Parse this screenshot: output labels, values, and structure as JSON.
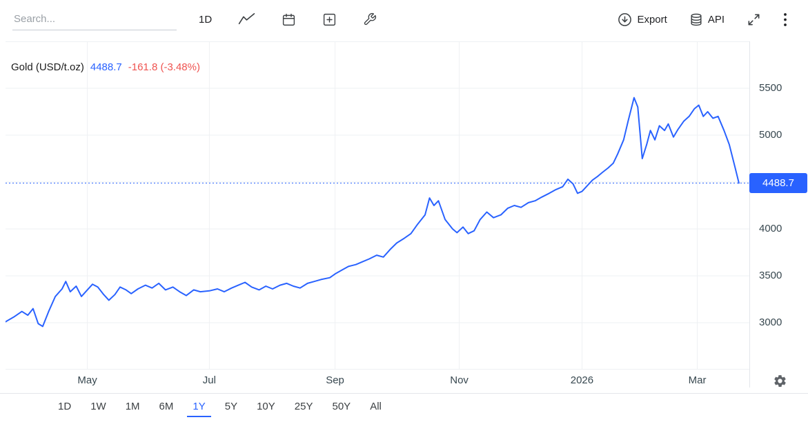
{
  "colors": {
    "accent": "#2962ff",
    "negative": "#ef5350",
    "grid": "#eef0f3",
    "axis_text": "#37474f"
  },
  "toolbar": {
    "search": {
      "placeholder": "Search...",
      "value": ""
    },
    "interval_label": "1D",
    "export_label": "Export",
    "api_label": "API",
    "icons": {
      "left": [
        "line-chart-icon",
        "calendar-icon",
        "add-icon",
        "wrench-icon"
      ],
      "right": [
        "export-cloud-icon",
        "api-database-icon",
        "fullscreen-icon",
        "kebab-menu-icon"
      ],
      "axis": [
        "gear-icon"
      ]
    }
  },
  "legend": {
    "title": "Gold (USD/t.oz)",
    "price": "4488.7",
    "change": "-161.8 (-3.48%)"
  },
  "price_axis": {
    "badge": "4488.7"
  },
  "range_buttons": [
    {
      "label": "1D",
      "active": false
    },
    {
      "label": "1W",
      "active": false
    },
    {
      "label": "1M",
      "active": false
    },
    {
      "label": "6M",
      "active": false
    },
    {
      "label": "1Y",
      "active": true
    },
    {
      "label": "5Y",
      "active": false
    },
    {
      "label": "10Y",
      "active": false
    },
    {
      "label": "25Y",
      "active": false
    },
    {
      "label": "50Y",
      "active": false
    },
    {
      "label": "All",
      "active": false
    }
  ],
  "chart_data": {
    "type": "line",
    "title": "Gold (USD/t.oz)",
    "ylim": [
      2500,
      6000
    ],
    "grid": true,
    "legend_position": "top-left",
    "current_price": 4488.7,
    "change": -161.8,
    "change_percent": -3.48,
    "x_format": "fraction of visible range (late Mar 2025 - late Mar 2026)",
    "y_gridlines": [
      3000,
      3500,
      4000,
      4500,
      5000,
      5500
    ],
    "y_tick_labels": [
      {
        "value": 5500,
        "label": "5500"
      },
      {
        "value": 5000,
        "label": "5000"
      },
      {
        "value": 4000,
        "label": "4000"
      },
      {
        "value": 3500,
        "label": "3500"
      },
      {
        "value": 3000,
        "label": "3000"
      }
    ],
    "x_ticks": [
      {
        "label": "May",
        "pos": 0.11
      },
      {
        "label": "Jul",
        "pos": 0.274
      },
      {
        "label": "Sep",
        "pos": 0.443
      },
      {
        "label": "Nov",
        "pos": 0.61
      },
      {
        "label": "2026",
        "pos": 0.775
      },
      {
        "label": "Mar",
        "pos": 0.93
      }
    ],
    "series": [
      {
        "name": "Gold (USD/t.oz)",
        "color": "#2962ff",
        "x": [
          0.0,
          0.011,
          0.022,
          0.03,
          0.037,
          0.044,
          0.05,
          0.058,
          0.067,
          0.076,
          0.081,
          0.087,
          0.095,
          0.102,
          0.11,
          0.117,
          0.124,
          0.132,
          0.139,
          0.147,
          0.154,
          0.162,
          0.169,
          0.178,
          0.188,
          0.197,
          0.206,
          0.215,
          0.225,
          0.234,
          0.243,
          0.253,
          0.262,
          0.274,
          0.285,
          0.294,
          0.304,
          0.313,
          0.322,
          0.331,
          0.341,
          0.35,
          0.359,
          0.369,
          0.378,
          0.387,
          0.396,
          0.406,
          0.415,
          0.424,
          0.436,
          0.443,
          0.452,
          0.461,
          0.471,
          0.48,
          0.489,
          0.499,
          0.508,
          0.517,
          0.526,
          0.536,
          0.545,
          0.554,
          0.564,
          0.57,
          0.576,
          0.582,
          0.591,
          0.601,
          0.607,
          0.615,
          0.622,
          0.63,
          0.638,
          0.647,
          0.656,
          0.666,
          0.675,
          0.684,
          0.693,
          0.703,
          0.712,
          0.721,
          0.731,
          0.74,
          0.749,
          0.756,
          0.763,
          0.769,
          0.775,
          0.782,
          0.789,
          0.796,
          0.802,
          0.81,
          0.817,
          0.823,
          0.831,
          0.837,
          0.845,
          0.85,
          0.856,
          0.862,
          0.867,
          0.873,
          0.879,
          0.886,
          0.891,
          0.898,
          0.904,
          0.912,
          0.919,
          0.926,
          0.932,
          0.938,
          0.944,
          0.951,
          0.958,
          0.966,
          0.973,
          0.981,
          0.986
        ],
        "values": [
          3010,
          3060,
          3120,
          3080,
          3150,
          2990,
          2960,
          3120,
          3280,
          3360,
          3440,
          3330,
          3390,
          3280,
          3350,
          3410,
          3380,
          3300,
          3240,
          3300,
          3380,
          3350,
          3310,
          3360,
          3400,
          3370,
          3420,
          3350,
          3380,
          3330,
          3290,
          3350,
          3330,
          3340,
          3360,
          3330,
          3370,
          3400,
          3430,
          3380,
          3350,
          3390,
          3360,
          3400,
          3420,
          3390,
          3370,
          3420,
          3440,
          3460,
          3480,
          3520,
          3560,
          3600,
          3620,
          3650,
          3680,
          3720,
          3700,
          3780,
          3850,
          3900,
          3950,
          4050,
          4150,
          4330,
          4250,
          4300,
          4100,
          4000,
          3960,
          4020,
          3950,
          3980,
          4100,
          4180,
          4120,
          4150,
          4220,
          4250,
          4230,
          4280,
          4300,
          4340,
          4380,
          4420,
          4450,
          4530,
          4480,
          4380,
          4400,
          4460,
          4520,
          4560,
          4600,
          4650,
          4700,
          4800,
          4950,
          5150,
          5400,
          5300,
          4750,
          4900,
          5050,
          4950,
          5100,
          5050,
          5120,
          4980,
          5060,
          5150,
          5200,
          5280,
          5320,
          5200,
          5250,
          5180,
          5200,
          5050,
          4900,
          4650,
          4488.7
        ]
      }
    ]
  }
}
